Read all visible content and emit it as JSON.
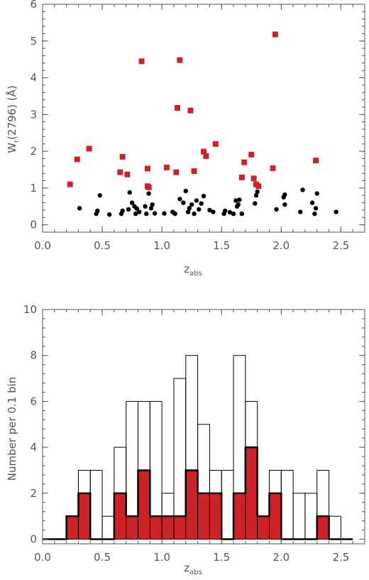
{
  "colors": {
    "strong": "#cc2228",
    "weak": "#000000",
    "axis": "#555555"
  },
  "chart_data": [
    {
      "type": "scatter",
      "title": "",
      "xlabel": {
        "main": "z",
        "sub": "abs"
      },
      "ylabel": {
        "pre": "W",
        "sub": "r",
        "post": "(2796) (Å)"
      },
      "xlim": [
        0.0,
        2.7
      ],
      "ylim": [
        -0.2,
        6.0
      ],
      "xticks": [
        "0.0",
        "0.5",
        "1.0",
        "1.5",
        "2.0",
        "2.5"
      ],
      "xtick_values": [
        0.0,
        0.5,
        1.0,
        1.5,
        2.0,
        2.5
      ],
      "yticks": [
        "0",
        "1",
        "2",
        "3",
        "4",
        "5",
        "6"
      ],
      "ytick_values": [
        0,
        1,
        2,
        3,
        4,
        5,
        6
      ],
      "grid": false,
      "series": [
        {
          "marker": "square",
          "color": "#cc2228",
          "points": [
            [
              0.23,
              1.1
            ],
            [
              0.29,
              1.78
            ],
            [
              0.39,
              2.07
            ],
            [
              0.65,
              1.43
            ],
            [
              0.67,
              1.85
            ],
            [
              0.71,
              1.37
            ],
            [
              0.83,
              4.45
            ],
            [
              0.88,
              1.53
            ],
            [
              0.88,
              1.05
            ],
            [
              0.89,
              1.02
            ],
            [
              1.04,
              1.56
            ],
            [
              1.12,
              1.43
            ],
            [
              1.13,
              3.18
            ],
            [
              1.15,
              4.48
            ],
            [
              1.24,
              3.11
            ],
            [
              1.27,
              1.46
            ],
            [
              1.35,
              1.99
            ],
            [
              1.37,
              1.87
            ],
            [
              1.45,
              2.2
            ],
            [
              1.67,
              1.29
            ],
            [
              1.69,
              1.7
            ],
            [
              1.75,
              1.91
            ],
            [
              1.77,
              1.26
            ],
            [
              1.79,
              1.1
            ],
            [
              1.81,
              1.05
            ],
            [
              1.93,
              1.54
            ],
            [
              1.95,
              5.18
            ],
            [
              2.29,
              1.75
            ]
          ]
        },
        {
          "marker": "circle",
          "color": "#000000",
          "points": [
            [
              0.31,
              0.45
            ],
            [
              0.45,
              0.3
            ],
            [
              0.46,
              0.38
            ],
            [
              0.48,
              0.8
            ],
            [
              0.56,
              0.28
            ],
            [
              0.66,
              0.3
            ],
            [
              0.67,
              0.38
            ],
            [
              0.72,
              0.42
            ],
            [
              0.73,
              0.88
            ],
            [
              0.75,
              0.6
            ],
            [
              0.77,
              0.5
            ],
            [
              0.78,
              0.3
            ],
            [
              0.79,
              0.44
            ],
            [
              0.81,
              0.35
            ],
            [
              0.86,
              0.5
            ],
            [
              0.87,
              0.3
            ],
            [
              0.89,
              0.85
            ],
            [
              0.91,
              0.45
            ],
            [
              0.92,
              0.55
            ],
            [
              0.94,
              0.31
            ],
            [
              1.02,
              0.31
            ],
            [
              1.09,
              0.35
            ],
            [
              1.11,
              0.3
            ],
            [
              1.15,
              0.7
            ],
            [
              1.18,
              0.6
            ],
            [
              1.2,
              0.92
            ],
            [
              1.22,
              0.35
            ],
            [
              1.23,
              0.45
            ],
            [
              1.25,
              0.55
            ],
            [
              1.27,
              0.3
            ],
            [
              1.29,
              0.66
            ],
            [
              1.31,
              0.42
            ],
            [
              1.33,
              0.58
            ],
            [
              1.35,
              0.78
            ],
            [
              1.4,
              0.4
            ],
            [
              1.43,
              0.35
            ],
            [
              1.52,
              0.3
            ],
            [
              1.53,
              0.38
            ],
            [
              1.57,
              0.34
            ],
            [
              1.6,
              0.3
            ],
            [
              1.62,
              0.66
            ],
            [
              1.63,
              0.5
            ],
            [
              1.64,
              0.55
            ],
            [
              1.65,
              0.68
            ],
            [
              1.67,
              0.3
            ],
            [
              1.78,
              0.58
            ],
            [
              1.79,
              0.8
            ],
            [
              1.8,
              0.9
            ],
            [
              1.96,
              0.42
            ],
            [
              2.02,
              0.75
            ],
            [
              2.03,
              0.82
            ],
            [
              2.03,
              0.55
            ],
            [
              2.16,
              0.35
            ],
            [
              2.18,
              0.95
            ],
            [
              2.26,
              0.6
            ],
            [
              2.28,
              0.3
            ],
            [
              2.29,
              0.45
            ],
            [
              2.3,
              0.85
            ],
            [
              2.46,
              0.35
            ]
          ]
        }
      ]
    },
    {
      "type": "bar",
      "title": "",
      "xlabel": {
        "main": "z",
        "sub": "abs"
      },
      "ylabel": "Number per 0.1 bin",
      "xlim": [
        0.0,
        2.7
      ],
      "ylim": [
        -0.2,
        10.0
      ],
      "xticks": [
        "0.0",
        "0.5",
        "1.0",
        "1.5",
        "2.0",
        "2.5"
      ],
      "xtick_values": [
        0.0,
        0.5,
        1.0,
        1.5,
        2.0,
        2.5
      ],
      "yticks": [
        "0",
        "2",
        "4",
        "6",
        "8",
        "10"
      ],
      "ytick_values": [
        0,
        2,
        4,
        6,
        8,
        10
      ],
      "grid": false,
      "bin_edges": [
        0.0,
        0.1,
        0.2,
        0.3,
        0.4,
        0.5,
        0.6,
        0.7,
        0.8,
        0.9,
        1.0,
        1.1,
        1.2,
        1.3,
        1.4,
        1.5,
        1.6,
        1.7,
        1.8,
        1.9,
        2.0,
        2.1,
        2.2,
        2.3,
        2.4,
        2.5,
        2.6
      ],
      "series": [
        {
          "style": "outline",
          "color": "#000000",
          "values": [
            0,
            0,
            1,
            3,
            3,
            1,
            4,
            6,
            6,
            6,
            2,
            7,
            8,
            5,
            3,
            3,
            8,
            6,
            1,
            3,
            3,
            2,
            2,
            3,
            1,
            0
          ]
        },
        {
          "style": "filled",
          "color": "#cc2228",
          "values": [
            0,
            0,
            1,
            2,
            0,
            0,
            2,
            1,
            3,
            1,
            1,
            1,
            3,
            2,
            2,
            0,
            2,
            4,
            1,
            2,
            0,
            0,
            0,
            1,
            0,
            0
          ]
        }
      ]
    }
  ]
}
